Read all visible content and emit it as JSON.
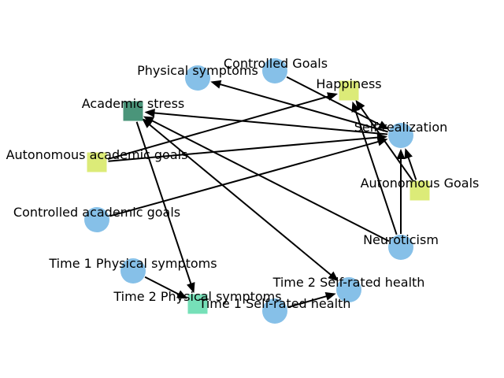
{
  "colors": {
    "circle": "#86c0e8",
    "square_yellow": "#dceb78",
    "square_teal": "#4a957a",
    "square_mint": "#76e0b8",
    "edge": "#000000"
  },
  "nodes": [
    {
      "id": "controlled_goals",
      "label": "Controlled Goals",
      "shape": "circle",
      "color": "circle"
    },
    {
      "id": "physical_symptoms",
      "label": "Physical symptoms",
      "shape": "circle",
      "color": "circle"
    },
    {
      "id": "happiness",
      "label": "Happiness",
      "shape": "square",
      "color": "square_yellow"
    },
    {
      "id": "academic_stress",
      "label": "Academic stress",
      "shape": "square",
      "color": "square_teal"
    },
    {
      "id": "self_realization",
      "label": "Self-realization",
      "shape": "circle",
      "color": "circle"
    },
    {
      "id": "autonomous_academic_goals",
      "label": "Autonomous academic goals",
      "shape": "square",
      "color": "square_yellow"
    },
    {
      "id": "autonomous_goals",
      "label": "Autonomous Goals",
      "shape": "square",
      "color": "square_yellow"
    },
    {
      "id": "controlled_academic_goals",
      "label": "Controlled academic goals",
      "shape": "circle",
      "color": "circle"
    },
    {
      "id": "neuroticism",
      "label": "Neuroticism",
      "shape": "circle",
      "color": "circle"
    },
    {
      "id": "time1_physical_symptoms",
      "label": "Time 1 Physical symptoms",
      "shape": "circle",
      "color": "circle"
    },
    {
      "id": "time2_self_rated_health",
      "label": "Time 2 Self-rated health",
      "shape": "circle",
      "color": "circle"
    },
    {
      "id": "time2_physical_symptoms",
      "label": "Time 2 Physical symptoms",
      "shape": "square",
      "color": "square_mint"
    },
    {
      "id": "time1_self_rated_health",
      "label": "Time 1 Self-rated health",
      "shape": "circle",
      "color": "circle"
    }
  ],
  "edges": [
    {
      "from": "controlled_goals",
      "to": "self_realization",
      "dir": "forward"
    },
    {
      "from": "self_realization",
      "to": "physical_symptoms",
      "dir": "forward"
    },
    {
      "from": "self_realization",
      "to": "academic_stress",
      "dir": "forward"
    },
    {
      "from": "autonomous_academic_goals",
      "to": "happiness",
      "dir": "forward"
    },
    {
      "from": "autonomous_academic_goals",
      "to": "self_realization",
      "dir": "forward"
    },
    {
      "from": "controlled_academic_goals",
      "to": "self_realization",
      "dir": "forward"
    },
    {
      "from": "autonomous_goals",
      "to": "happiness",
      "dir": "forward"
    },
    {
      "from": "autonomous_goals",
      "to": "self_realization",
      "dir": "forward"
    },
    {
      "from": "neuroticism",
      "to": "self_realization",
      "dir": "forward"
    },
    {
      "from": "neuroticism",
      "to": "happiness",
      "dir": "forward"
    },
    {
      "from": "neuroticism",
      "to": "academic_stress",
      "dir": "forward"
    },
    {
      "from": "academic_stress",
      "to": "time2_physical_symptoms",
      "dir": "forward"
    },
    {
      "from": "academic_stress",
      "to": "time2_self_rated_health",
      "dir": "both"
    },
    {
      "from": "time1_physical_symptoms",
      "to": "time2_physical_symptoms",
      "dir": "forward"
    },
    {
      "from": "time1_self_rated_health",
      "to": "time2_self_rated_health",
      "dir": "forward"
    }
  ]
}
